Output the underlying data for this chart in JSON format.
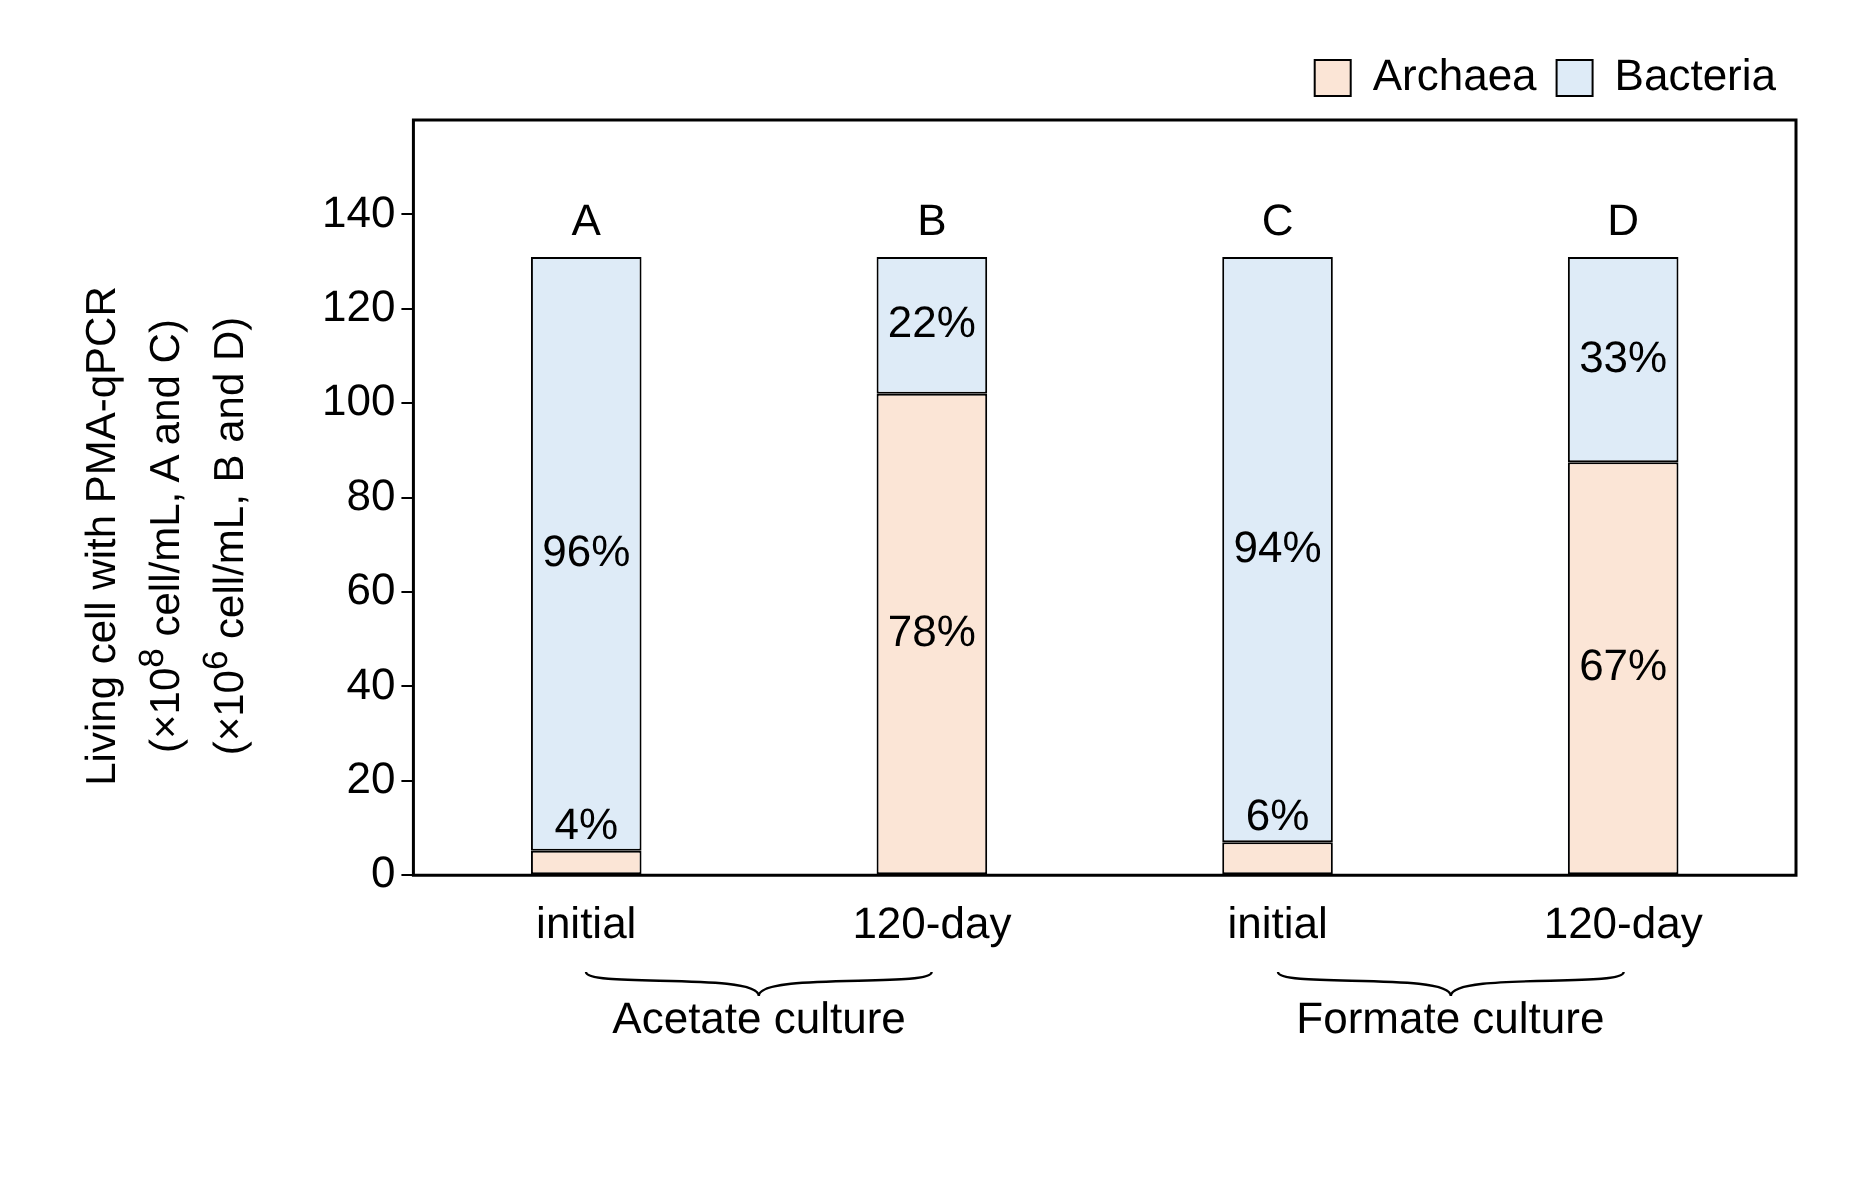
{
  "chart_data": {
    "type": "bar",
    "stacked": true,
    "ylabel": "Living cell with PMA-qPCR\n(×10$^{8}$ cell/mL, A and C)\n(×10$^{6}$ cell/mL, B and D)",
    "categories": [
      "initial",
      "120-day",
      "initial",
      "120-day"
    ],
    "series": [
      {
        "name": "Archaea",
        "color": "#fbe5d6",
        "values": [
          5.2,
          102,
          7,
          87.5
        ]
      },
      {
        "name": "Bacteria",
        "color": "#deebf7",
        "values": [
          125.8,
          29,
          124,
          43.5
        ]
      }
    ],
    "ylim": [
      0,
      160
    ],
    "yticks": [
      0,
      20,
      40,
      60,
      80,
      100,
      120,
      140
    ],
    "grid": false,
    "legend": "top",
    "annotations": [
      "A",
      "B",
      "C",
      "D",
      "Acetate culture",
      "Formate culture",
      "4%",
      "78%",
      "6%",
      "67%",
      "96%",
      "22%",
      "94%",
      "33%"
    ]
  }
}
